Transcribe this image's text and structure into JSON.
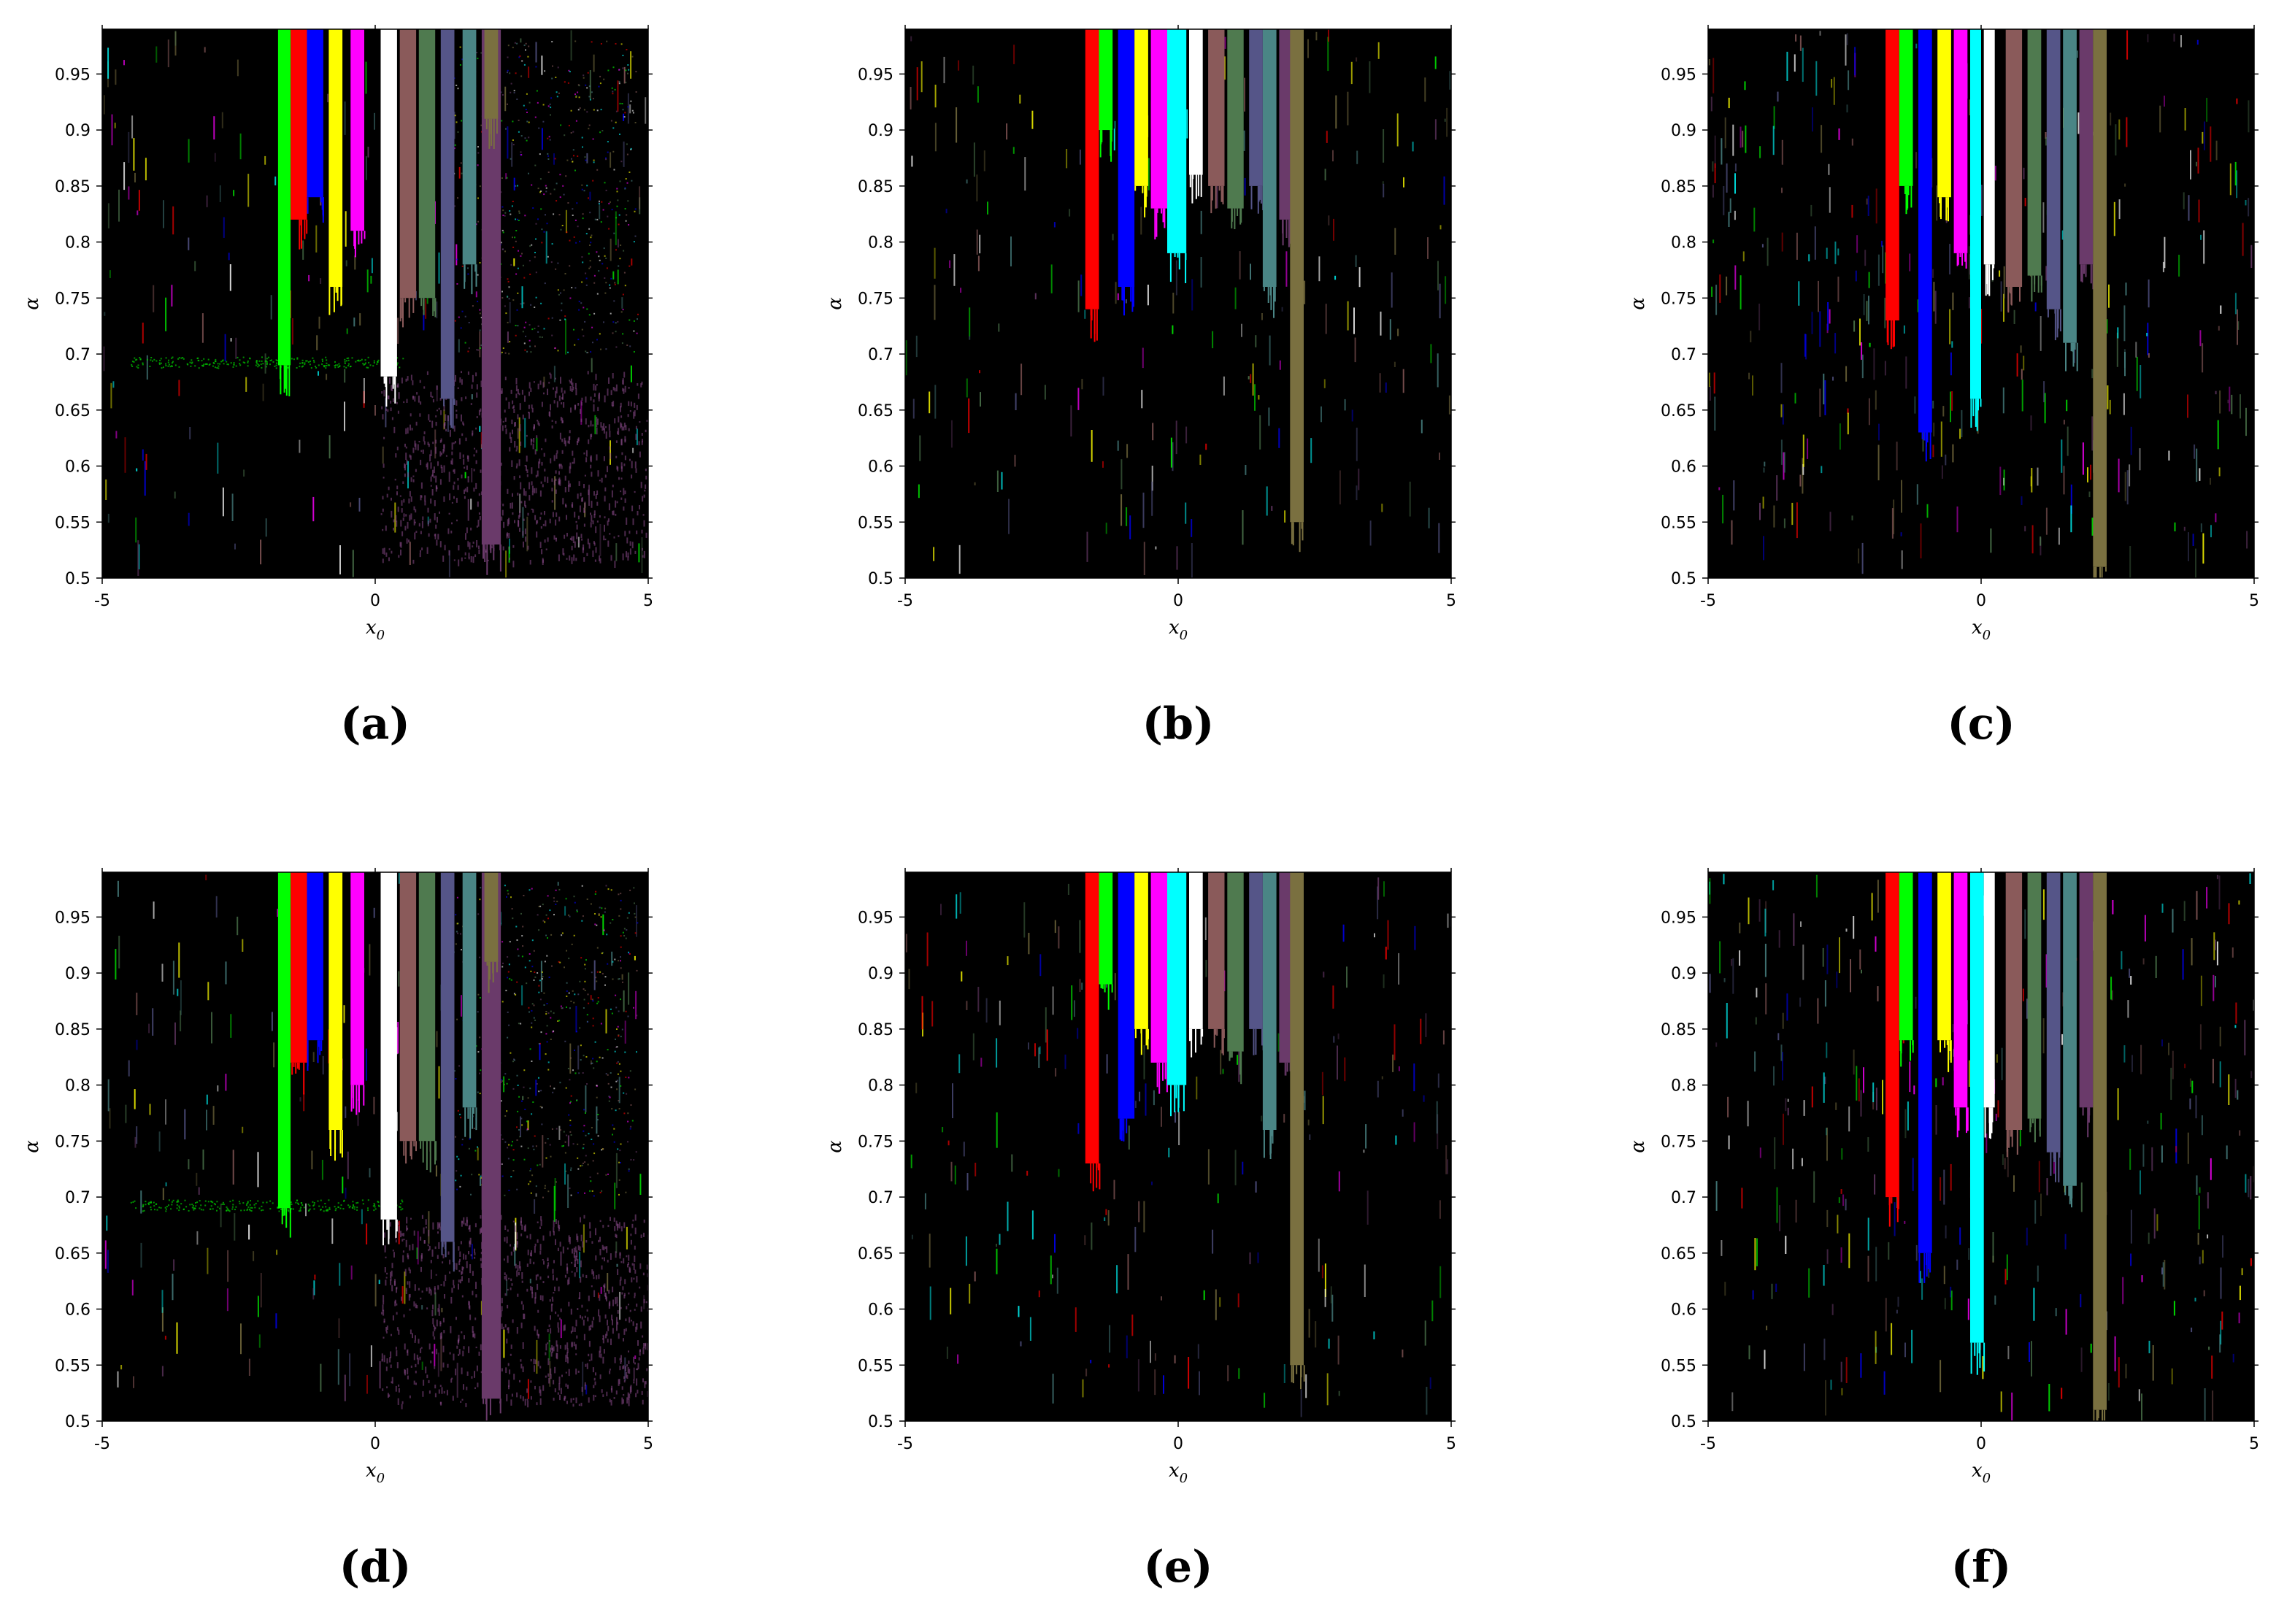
{
  "figure": {
    "colors": {
      "background": "#000000",
      "basins": [
        "#ff0000",
        "#00ff00",
        "#0000ff",
        "#ffff00",
        "#ff00ff",
        "#00ffff",
        "#ffffff",
        "#8a5a5a",
        "#4f7a4f",
        "#555588",
        "#4a8585",
        "#6a3a6a",
        "#7a7040"
      ]
    }
  },
  "chart_data": [
    {
      "panel": "(a)",
      "type": "heatmap",
      "xlabel": "x0",
      "ylabel": "α",
      "xlim": [
        -5,
        5
      ],
      "ylim": [
        0.5,
        0.99
      ],
      "xticks": [
        "-5",
        "0",
        "5"
      ],
      "yticks": [
        "0.5",
        "0.55",
        "0.6",
        "0.65",
        "0.7",
        "0.75",
        "0.8",
        "0.85",
        "0.9",
        "0.95"
      ],
      "bands": [
        {
          "x0": -1.78,
          "x1": -1.55,
          "color": "#00ff00",
          "alpha_min": 0.69
        },
        {
          "x0": -1.55,
          "x1": -1.25,
          "color": "#ff0000",
          "alpha_min": 0.82
        },
        {
          "x0": -1.25,
          "x1": -0.95,
          "color": "#0000ff",
          "alpha_min": 0.84
        },
        {
          "x0": -0.85,
          "x1": -0.6,
          "color": "#ffff00",
          "alpha_min": 0.76
        },
        {
          "x0": -0.45,
          "x1": -0.2,
          "color": "#ff00ff",
          "alpha_min": 0.81
        },
        {
          "x0": 0.1,
          "x1": 0.4,
          "color": "#ffffff",
          "alpha_min": 0.68
        },
        {
          "x0": 0.45,
          "x1": 0.75,
          "color": "#8a5a5a",
          "alpha_min": 0.75
        },
        {
          "x0": 0.8,
          "x1": 1.1,
          "color": "#4f7a4f",
          "alpha_min": 0.75
        },
        {
          "x0": 1.2,
          "x1": 1.45,
          "color": "#555588",
          "alpha_min": 0.66
        },
        {
          "x0": 1.6,
          "x1": 1.85,
          "color": "#4a8585",
          "alpha_min": 0.78
        },
        {
          "x0": 1.95,
          "x1": 2.3,
          "color": "#6a3a6a",
          "alpha_min": 0.53
        },
        {
          "x0": 2.0,
          "x1": 2.25,
          "color": "#7a7040",
          "alpha_min": 0.91
        }
      ]
    },
    {
      "panel": "(b)",
      "type": "heatmap",
      "xlabel": "x0",
      "ylabel": "α",
      "xlim": [
        -5,
        5
      ],
      "ylim": [
        0.5,
        0.99
      ],
      "xticks": [
        "-5",
        "0",
        "5"
      ],
      "yticks": [
        "0.5",
        "0.55",
        "0.6",
        "0.65",
        "0.7",
        "0.75",
        "0.8",
        "0.85",
        "0.9",
        "0.95"
      ],
      "bands": [
        {
          "x0": -1.7,
          "x1": -1.45,
          "color": "#ff0000",
          "alpha_min": 0.74
        },
        {
          "x0": -1.45,
          "x1": -1.2,
          "color": "#00ff00",
          "alpha_min": 0.9
        },
        {
          "x0": -1.1,
          "x1": -0.8,
          "color": "#0000ff",
          "alpha_min": 0.76
        },
        {
          "x0": -0.8,
          "x1": -0.55,
          "color": "#ffff00",
          "alpha_min": 0.85
        },
        {
          "x0": -0.5,
          "x1": -0.2,
          "color": "#ff00ff",
          "alpha_min": 0.83
        },
        {
          "x0": -0.2,
          "x1": 0.15,
          "color": "#00ffff",
          "alpha_min": 0.79
        },
        {
          "x0": 0.2,
          "x1": 0.45,
          "color": "#ffffff",
          "alpha_min": 0.86
        },
        {
          "x0": 0.55,
          "x1": 0.85,
          "color": "#8a5a5a",
          "alpha_min": 0.85
        },
        {
          "x0": 0.9,
          "x1": 1.2,
          "color": "#4f7a4f",
          "alpha_min": 0.83
        },
        {
          "x0": 1.3,
          "x1": 1.55,
          "color": "#555588",
          "alpha_min": 0.85
        },
        {
          "x0": 1.55,
          "x1": 1.8,
          "color": "#4a8585",
          "alpha_min": 0.76
        },
        {
          "x0": 1.85,
          "x1": 2.1,
          "color": "#6a3a6a",
          "alpha_min": 0.82
        },
        {
          "x0": 2.05,
          "x1": 2.3,
          "color": "#7a7040",
          "alpha_min": 0.55
        }
      ]
    },
    {
      "panel": "(c)",
      "type": "heatmap",
      "xlabel": "x0",
      "ylabel": "α",
      "xlim": [
        -5,
        5
      ],
      "ylim": [
        0.5,
        0.99
      ],
      "xticks": [
        "-5",
        "0",
        "5"
      ],
      "yticks": [
        "0.5",
        "0.55",
        "0.6",
        "0.65",
        "0.7",
        "0.75",
        "0.8",
        "0.85",
        "0.9",
        "0.95"
      ],
      "bands": [
        {
          "x0": -1.75,
          "x1": -1.5,
          "color": "#ff0000",
          "alpha_min": 0.73
        },
        {
          "x0": -1.5,
          "x1": -1.25,
          "color": "#00ff00",
          "alpha_min": 0.85
        },
        {
          "x0": -1.15,
          "x1": -0.9,
          "color": "#0000ff",
          "alpha_min": 0.63
        },
        {
          "x0": -0.8,
          "x1": -0.55,
          "color": "#ffff00",
          "alpha_min": 0.84
        },
        {
          "x0": -0.5,
          "x1": -0.25,
          "color": "#ff00ff",
          "alpha_min": 0.79
        },
        {
          "x0": -0.2,
          "x1": 0.0,
          "color": "#00ffff",
          "alpha_min": 0.66
        },
        {
          "x0": 0.05,
          "x1": 0.25,
          "color": "#ffffff",
          "alpha_min": 0.78
        },
        {
          "x0": 0.45,
          "x1": 0.75,
          "color": "#8a5a5a",
          "alpha_min": 0.76
        },
        {
          "x0": 0.85,
          "x1": 1.1,
          "color": "#4f7a4f",
          "alpha_min": 0.77
        },
        {
          "x0": 1.2,
          "x1": 1.45,
          "color": "#555588",
          "alpha_min": 0.74
        },
        {
          "x0": 1.5,
          "x1": 1.75,
          "color": "#4a8585",
          "alpha_min": 0.71
        },
        {
          "x0": 1.8,
          "x1": 2.05,
          "color": "#6a3a6a",
          "alpha_min": 0.78
        },
        {
          "x0": 2.05,
          "x1": 2.3,
          "color": "#7a7040",
          "alpha_min": 0.51
        }
      ]
    },
    {
      "panel": "(d)",
      "type": "heatmap",
      "xlabel": "x0",
      "ylabel": "α",
      "xlim": [
        -5,
        5
      ],
      "ylim": [
        0.5,
        0.99
      ],
      "xticks": [
        "-5",
        "0",
        "5"
      ],
      "yticks": [
        "0.5",
        "0.55",
        "0.6",
        "0.65",
        "0.7",
        "0.75",
        "0.8",
        "0.85",
        "0.9",
        "0.95"
      ],
      "bands": [
        {
          "x0": -1.78,
          "x1": -1.55,
          "color": "#00ff00",
          "alpha_min": 0.69
        },
        {
          "x0": -1.55,
          "x1": -1.25,
          "color": "#ff0000",
          "alpha_min": 0.82
        },
        {
          "x0": -1.25,
          "x1": -0.95,
          "color": "#0000ff",
          "alpha_min": 0.84
        },
        {
          "x0": -0.85,
          "x1": -0.6,
          "color": "#ffff00",
          "alpha_min": 0.76
        },
        {
          "x0": -0.45,
          "x1": -0.2,
          "color": "#ff00ff",
          "alpha_min": 0.8
        },
        {
          "x0": 0.1,
          "x1": 0.4,
          "color": "#ffffff",
          "alpha_min": 0.68
        },
        {
          "x0": 0.45,
          "x1": 0.75,
          "color": "#8a5a5a",
          "alpha_min": 0.75
        },
        {
          "x0": 0.8,
          "x1": 1.1,
          "color": "#4f7a4f",
          "alpha_min": 0.75
        },
        {
          "x0": 1.2,
          "x1": 1.45,
          "color": "#555588",
          "alpha_min": 0.66
        },
        {
          "x0": 1.6,
          "x1": 1.85,
          "color": "#4a8585",
          "alpha_min": 0.78
        },
        {
          "x0": 1.95,
          "x1": 2.3,
          "color": "#6a3a6a",
          "alpha_min": 0.52
        },
        {
          "x0": 2.0,
          "x1": 2.25,
          "color": "#7a7040",
          "alpha_min": 0.91
        }
      ]
    },
    {
      "panel": "(e)",
      "type": "heatmap",
      "xlabel": "x0",
      "ylabel": "α",
      "xlim": [
        -5,
        5
      ],
      "ylim": [
        0.5,
        0.99
      ],
      "xticks": [
        "-5",
        "0",
        "5"
      ],
      "yticks": [
        "0.5",
        "0.55",
        "0.6",
        "0.65",
        "0.7",
        "0.75",
        "0.8",
        "0.85",
        "0.9",
        "0.95"
      ],
      "bands": [
        {
          "x0": -1.7,
          "x1": -1.45,
          "color": "#ff0000",
          "alpha_min": 0.73
        },
        {
          "x0": -1.45,
          "x1": -1.2,
          "color": "#00ff00",
          "alpha_min": 0.89
        },
        {
          "x0": -1.1,
          "x1": -0.8,
          "color": "#0000ff",
          "alpha_min": 0.77
        },
        {
          "x0": -0.8,
          "x1": -0.55,
          "color": "#ffff00",
          "alpha_min": 0.85
        },
        {
          "x0": -0.5,
          "x1": -0.2,
          "color": "#ff00ff",
          "alpha_min": 0.82
        },
        {
          "x0": -0.2,
          "x1": 0.15,
          "color": "#00ffff",
          "alpha_min": 0.8
        },
        {
          "x0": 0.2,
          "x1": 0.45,
          "color": "#ffffff",
          "alpha_min": 0.85
        },
        {
          "x0": 0.55,
          "x1": 0.85,
          "color": "#8a5a5a",
          "alpha_min": 0.85
        },
        {
          "x0": 0.9,
          "x1": 1.2,
          "color": "#4f7a4f",
          "alpha_min": 0.83
        },
        {
          "x0": 1.3,
          "x1": 1.55,
          "color": "#555588",
          "alpha_min": 0.85
        },
        {
          "x0": 1.55,
          "x1": 1.8,
          "color": "#4a8585",
          "alpha_min": 0.76
        },
        {
          "x0": 1.85,
          "x1": 2.1,
          "color": "#6a3a6a",
          "alpha_min": 0.82
        },
        {
          "x0": 2.05,
          "x1": 2.3,
          "color": "#7a7040",
          "alpha_min": 0.55
        }
      ]
    },
    {
      "panel": "(f)",
      "type": "heatmap",
      "xlabel": "x0",
      "ylabel": "α",
      "xlim": [
        -5,
        5
      ],
      "ylim": [
        0.5,
        0.99
      ],
      "xticks": [
        "-5",
        "0",
        "5"
      ],
      "yticks": [
        "0.5",
        "0.55",
        "0.6",
        "0.65",
        "0.7",
        "0.75",
        "0.8",
        "0.85",
        "0.9",
        "0.95"
      ],
      "bands": [
        {
          "x0": -1.75,
          "x1": -1.5,
          "color": "#ff0000",
          "alpha_min": 0.7
        },
        {
          "x0": -1.5,
          "x1": -1.25,
          "color": "#00ff00",
          "alpha_min": 0.84
        },
        {
          "x0": -1.15,
          "x1": -0.9,
          "color": "#0000ff",
          "alpha_min": 0.65
        },
        {
          "x0": -0.8,
          "x1": -0.55,
          "color": "#ffff00",
          "alpha_min": 0.84
        },
        {
          "x0": -0.5,
          "x1": -0.25,
          "color": "#ff00ff",
          "alpha_min": 0.78
        },
        {
          "x0": -0.2,
          "x1": 0.05,
          "color": "#00ffff",
          "alpha_min": 0.57
        },
        {
          "x0": 0.05,
          "x1": 0.25,
          "color": "#ffffff",
          "alpha_min": 0.78
        },
        {
          "x0": 0.45,
          "x1": 0.75,
          "color": "#8a5a5a",
          "alpha_min": 0.76
        },
        {
          "x0": 0.85,
          "x1": 1.1,
          "color": "#4f7a4f",
          "alpha_min": 0.77
        },
        {
          "x0": 1.2,
          "x1": 1.45,
          "color": "#555588",
          "alpha_min": 0.74
        },
        {
          "x0": 1.5,
          "x1": 1.75,
          "color": "#4a8585",
          "alpha_min": 0.71
        },
        {
          "x0": 1.8,
          "x1": 2.05,
          "color": "#6a3a6a",
          "alpha_min": 0.78
        },
        {
          "x0": 2.05,
          "x1": 2.3,
          "color": "#7a7040",
          "alpha_min": 0.51
        }
      ]
    }
  ]
}
